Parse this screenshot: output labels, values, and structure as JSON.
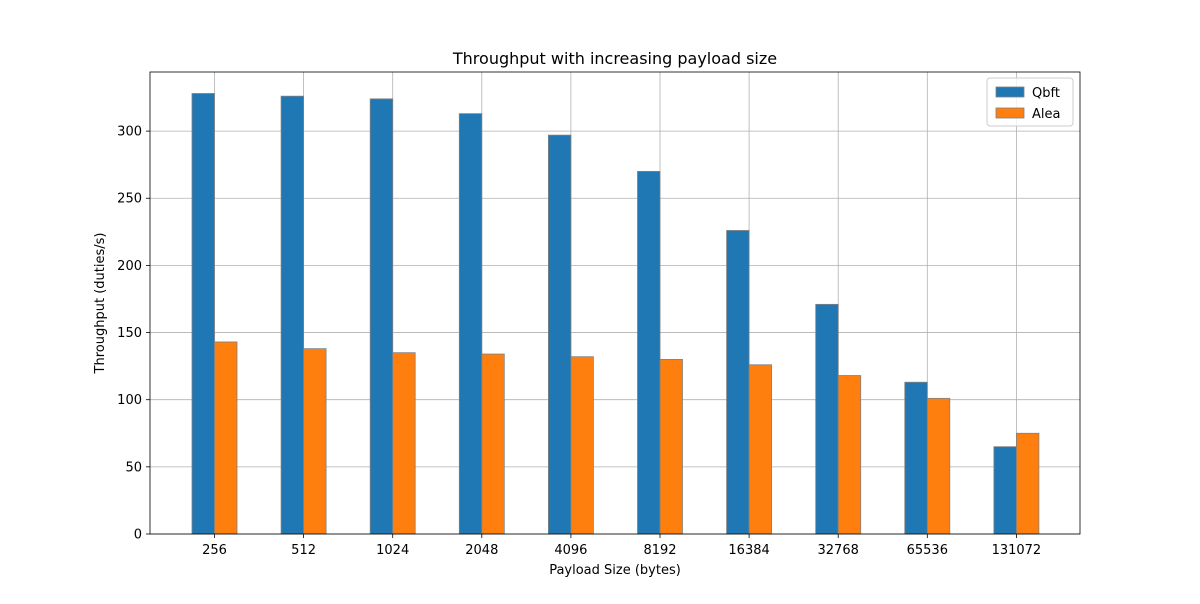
{
  "chart_data": {
    "type": "bar",
    "title": "Throughput with increasing payload size",
    "xlabel": "Payload Size (bytes)",
    "ylabel": "Throughput (duties/s)",
    "categories": [
      "256",
      "512",
      "1024",
      "2048",
      "4096",
      "8192",
      "16384",
      "32768",
      "65536",
      "131072"
    ],
    "series": [
      {
        "name": "Qbft",
        "color": "#1f77b4",
        "values": [
          328,
          326,
          324,
          313,
          297,
          270,
          226,
          171,
          113,
          65
        ]
      },
      {
        "name": "Alea",
        "color": "#ff7f0e",
        "values": [
          143,
          138,
          135,
          134,
          132,
          130,
          126,
          118,
          101,
          75
        ]
      }
    ],
    "ylim": [
      0,
      344
    ],
    "yticks": [
      0,
      50,
      100,
      150,
      200,
      250,
      300
    ],
    "grid": true,
    "legend_position": "top-right"
  }
}
